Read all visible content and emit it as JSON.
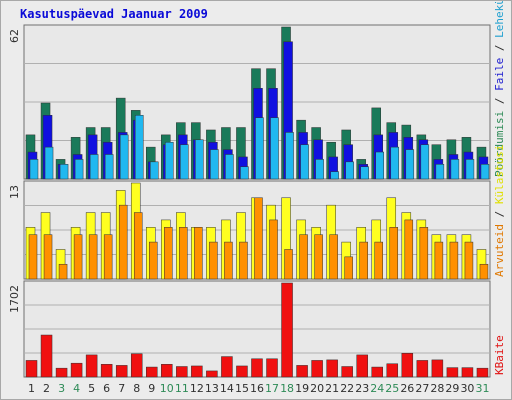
{
  "title": "Kasutuspäevad Jaanuar 2009",
  "colors": {
    "background": "#ececec",
    "panel": "#e8e8e8",
    "panel_border": "#707070",
    "gridline": "#b0b0b0",
    "weekday_label": "#303030",
    "weekend_label": "#2e8b57"
  },
  "chart_data": [
    {
      "type": "bar",
      "panel": "top",
      "ymax_label": "62",
      "ylim": [
        0,
        62
      ],
      "side_legend": [
        {
          "text": "Pöördumisi",
          "color": "#2e8b57"
        },
        {
          "text": " / ",
          "color": "#303030"
        },
        {
          "text": "Faile",
          "color": "#2020d0"
        },
        {
          "text": " / ",
          "color": "#303030"
        },
        {
          "text": "Lehekülgi",
          "color": "#20a0d0"
        }
      ],
      "categories": [
        "1",
        "2",
        "3",
        "4",
        "5",
        "6",
        "7",
        "8",
        "9",
        "10",
        "11",
        "12",
        "13",
        "14",
        "15",
        "16",
        "17",
        "18",
        "19",
        "20",
        "21",
        "22",
        "23",
        "24",
        "25",
        "26",
        "27",
        "28",
        "29",
        "30",
        "31"
      ],
      "series": [
        {
          "name": "Pöördumisi",
          "color": "#1a7a5a",
          "values": [
            18,
            31,
            8,
            17,
            21,
            21,
            33,
            28,
            13,
            18,
            23,
            23,
            20,
            21,
            21,
            45,
            45,
            62,
            24,
            21,
            15,
            20,
            8,
            29,
            23,
            22,
            18,
            14,
            16,
            17,
            13
          ]
        },
        {
          "name": "Faile",
          "color": "#1010e0",
          "values": [
            11,
            26,
            6,
            10,
            18,
            15,
            19,
            24,
            7,
            14,
            18,
            16,
            15,
            12,
            9,
            37,
            37,
            56,
            19,
            16,
            9,
            14,
            6,
            18,
            19,
            17,
            16,
            8,
            10,
            11,
            9
          ]
        },
        {
          "name": "Lehekülgi",
          "color": "#20b8f0",
          "values": [
            8,
            13,
            6,
            8,
            10,
            10,
            18,
            26,
            7,
            15,
            14,
            16,
            12,
            10,
            5,
            25,
            25,
            19,
            14,
            8,
            3,
            7,
            5,
            11,
            13,
            12,
            14,
            6,
            8,
            8,
            6
          ]
        }
      ]
    },
    {
      "type": "bar",
      "panel": "middle",
      "ymax_label": "13",
      "ylim": [
        0,
        13
      ],
      "side_legend": [
        {
          "text": "Arvuteid",
          "color": "#e07800"
        },
        {
          "text": " / ",
          "color": "#303030"
        },
        {
          "text": "Külastusi",
          "color": "#e0e000"
        }
      ],
      "categories": [
        "1",
        "2",
        "3",
        "4",
        "5",
        "6",
        "7",
        "8",
        "9",
        "10",
        "11",
        "12",
        "13",
        "14",
        "15",
        "16",
        "17",
        "18",
        "19",
        "20",
        "21",
        "22",
        "23",
        "24",
        "25",
        "26",
        "27",
        "28",
        "29",
        "30",
        "31"
      ],
      "series": [
        {
          "name": "Külastusi",
          "color": "#ffff20",
          "values": [
            7,
            9,
            4,
            7,
            9,
            9,
            12,
            13,
            7,
            8,
            9,
            7,
            7,
            8,
            9,
            11,
            10,
            11,
            8,
            7,
            10,
            5,
            7,
            8,
            11,
            9,
            8,
            6,
            6,
            6,
            4
          ]
        },
        {
          "name": "Arvuteid",
          "color": "#ff9000",
          "values": [
            6,
            6,
            2,
            6,
            6,
            6,
            10,
            9,
            5,
            7,
            7,
            7,
            5,
            5,
            5,
            11,
            8,
            4,
            6,
            6,
            6,
            3,
            5,
            5,
            7,
            8,
            7,
            5,
            5,
            5,
            2
          ]
        }
      ]
    },
    {
      "type": "bar",
      "panel": "bottom",
      "ymax_label": "1702",
      "ylim": [
        0,
        1702
      ],
      "side_legend": [
        {
          "text": "KBaite",
          "color": "#e01010"
        }
      ],
      "categories": [
        "1",
        "2",
        "3",
        "4",
        "5",
        "6",
        "7",
        "8",
        "9",
        "10",
        "11",
        "12",
        "13",
        "14",
        "15",
        "16",
        "17",
        "18",
        "19",
        "20",
        "21",
        "22",
        "23",
        "24",
        "25",
        "26",
        "27",
        "28",
        "29",
        "30",
        "31"
      ],
      "weekend_days": [
        3,
        4,
        10,
        11,
        17,
        18,
        24,
        25,
        31
      ],
      "series": [
        {
          "name": "KBaite",
          "color": "#f01010",
          "values": [
            300,
            760,
            160,
            250,
            400,
            230,
            210,
            420,
            180,
            230,
            190,
            200,
            110,
            370,
            200,
            330,
            330,
            1702,
            210,
            300,
            310,
            190,
            400,
            180,
            240,
            430,
            300,
            310,
            170,
            170,
            160
          ]
        }
      ]
    }
  ]
}
